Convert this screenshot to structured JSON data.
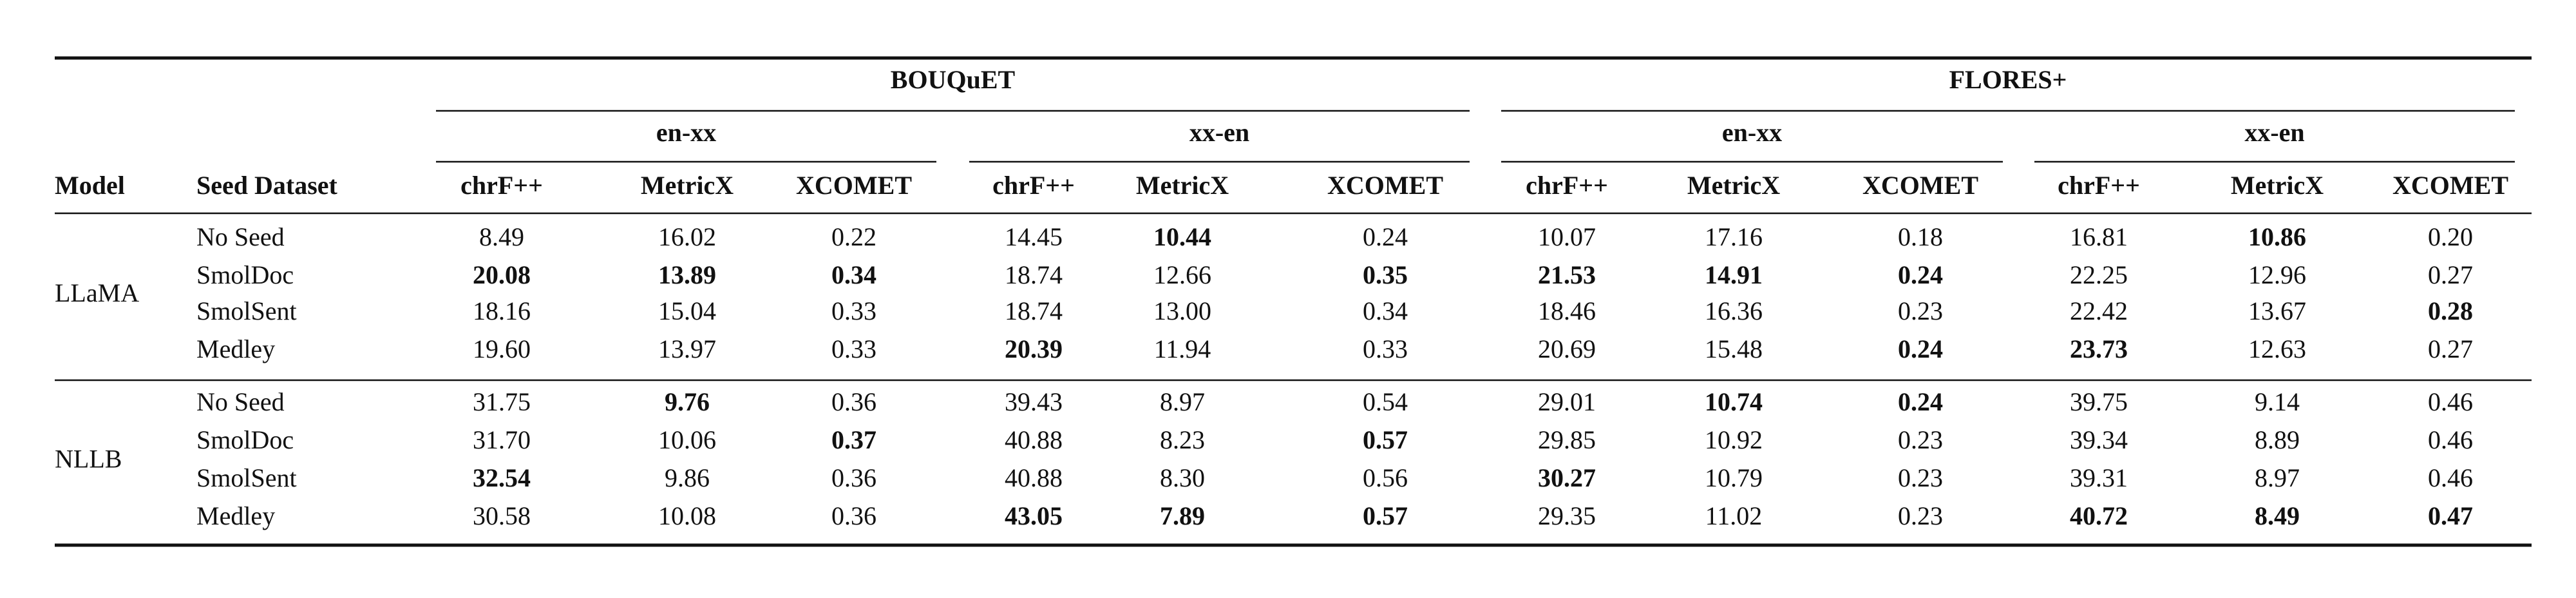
{
  "table": {
    "header": {
      "model": "Model",
      "seed_dataset": "Seed Dataset",
      "groups": [
        {
          "title": "BOUQuET",
          "subgroups": [
            {
              "title": "en-xx",
              "metrics": [
                "chrF++",
                "MetricX",
                "XCOMET"
              ]
            },
            {
              "title": "xx-en",
              "metrics": [
                "chrF++",
                "MetricX",
                "XCOMET"
              ]
            }
          ]
        },
        {
          "title": "FLORES+",
          "subgroups": [
            {
              "title": "en-xx",
              "metrics": [
                "chrF++",
                "MetricX",
                "XCOMET"
              ]
            },
            {
              "title": "xx-en",
              "metrics": [
                "chrF++",
                "MetricX",
                "XCOMET"
              ]
            }
          ]
        }
      ]
    },
    "models": [
      {
        "name": "LLaMA",
        "rows": [
          {
            "seed": "No Seed",
            "cells": [
              "8.49",
              "16.02",
              "0.22",
              "14.45",
              "10.44",
              "0.24",
              "10.07",
              "17.16",
              "0.18",
              "16.81",
              "10.86",
              "0.20"
            ],
            "bold": [
              4,
              10
            ]
          },
          {
            "seed": "SmolDoc",
            "cells": [
              "20.08",
              "13.89",
              "0.34",
              "18.74",
              "12.66",
              "0.35",
              "21.53",
              "14.91",
              "0.24",
              "22.25",
              "12.96",
              "0.27"
            ],
            "bold": [
              0,
              1,
              2,
              5,
              6,
              7,
              8
            ]
          },
          {
            "seed": "SmolSent",
            "cells": [
              "18.16",
              "15.04",
              "0.33",
              "18.74",
              "13.00",
              "0.34",
              "18.46",
              "16.36",
              "0.23",
              "22.42",
              "13.67",
              "0.28"
            ],
            "bold": [
              11
            ]
          },
          {
            "seed": "Medley",
            "cells": [
              "19.60",
              "13.97",
              "0.33",
              "20.39",
              "11.94",
              "0.33",
              "20.69",
              "15.48",
              "0.24",
              "23.73",
              "12.63",
              "0.27"
            ],
            "bold": [
              3,
              8,
              9
            ]
          }
        ]
      },
      {
        "name": "NLLB",
        "rows": [
          {
            "seed": "No Seed",
            "cells": [
              "31.75",
              "9.76",
              "0.36",
              "39.43",
              "8.97",
              "0.54",
              "29.01",
              "10.74",
              "0.24",
              "39.75",
              "9.14",
              "0.46"
            ],
            "bold": [
              1,
              7,
              8
            ]
          },
          {
            "seed": "SmolDoc",
            "cells": [
              "31.70",
              "10.06",
              "0.37",
              "40.88",
              "8.23",
              "0.57",
              "29.85",
              "10.92",
              "0.23",
              "39.34",
              "8.89",
              "0.46"
            ],
            "bold": [
              2,
              5
            ]
          },
          {
            "seed": "SmolSent",
            "cells": [
              "32.54",
              "9.86",
              "0.36",
              "40.88",
              "8.30",
              "0.56",
              "30.27",
              "10.79",
              "0.23",
              "39.31",
              "8.97",
              "0.46"
            ],
            "bold": [
              0,
              6
            ]
          },
          {
            "seed": "Medley",
            "cells": [
              "30.58",
              "10.08",
              "0.36",
              "43.05",
              "7.89",
              "0.57",
              "29.35",
              "11.02",
              "0.23",
              "40.72",
              "8.49",
              "0.47"
            ],
            "bold": [
              3,
              4,
              5,
              9,
              10,
              11
            ]
          }
        ]
      }
    ]
  }
}
